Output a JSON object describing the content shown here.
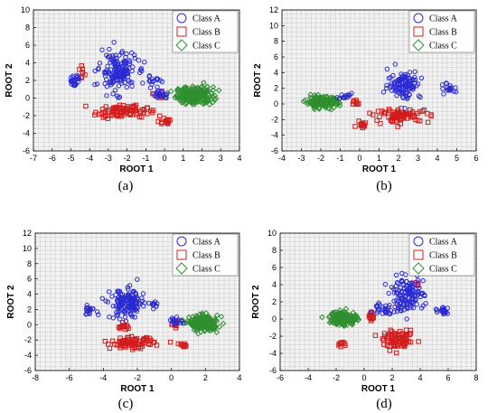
{
  "legend_entries": [
    {
      "label": "Class A",
      "color": "#2a2ad4",
      "marker": "circle"
    },
    {
      "label": "Class B",
      "color": "#d21c1c",
      "marker": "square"
    },
    {
      "label": "Class C",
      "color": "#2f8f2f",
      "marker": "diamond"
    }
  ],
  "chart_data": [
    {
      "type": "scatter",
      "caption": "(a)",
      "xlabel": "ROOT 1",
      "ylabel": "ROOT 2",
      "xlim": [
        -7,
        4
      ],
      "ylim": [
        -6,
        10
      ],
      "xticks": [
        -7,
        -6,
        -5,
        -4,
        -3,
        -2,
        -1,
        0,
        1,
        2,
        3,
        4
      ],
      "yticks": [
        -6,
        -4,
        -2,
        0,
        2,
        4,
        6,
        8,
        10
      ],
      "grid": true,
      "legend_position": "top-right",
      "series": [
        {
          "name": "Class A",
          "clusters": [
            {
              "center": [
                -2.5,
                3.0
              ],
              "spread": [
                0.7,
                1.6
              ],
              "count": 160
            },
            {
              "center": [
                -4.8,
                2.0
              ],
              "spread": [
                0.2,
                0.6
              ],
              "count": 25
            },
            {
              "center": [
                -0.5,
                2.0
              ],
              "spread": [
                0.3,
                0.4
              ],
              "count": 15
            },
            {
              "center": [
                -0.2,
                0.4
              ],
              "spread": [
                0.3,
                0.3
              ],
              "count": 20
            }
          ]
        },
        {
          "name": "Class B",
          "clusters": [
            {
              "center": [
                -2.3,
                -1.5
              ],
              "spread": [
                1.0,
                0.5
              ],
              "count": 90
            },
            {
              "center": [
                0.0,
                -2.6
              ],
              "spread": [
                0.3,
                0.3
              ],
              "count": 15
            },
            {
              "center": [
                -4.4,
                2.8
              ],
              "spread": [
                0.2,
                0.7
              ],
              "count": 8
            },
            {
              "center": [
                -0.3,
                0.3
              ],
              "spread": [
                0.2,
                0.3
              ],
              "count": 10
            }
          ]
        },
        {
          "name": "Class C",
          "clusters": [
            {
              "center": [
                1.6,
                0.3
              ],
              "spread": [
                0.7,
                0.7
              ],
              "count": 230
            }
          ]
        }
      ]
    },
    {
      "type": "scatter",
      "caption": "(b)",
      "xlabel": "ROOT 1",
      "ylabel": "ROOT 2",
      "xlim": [
        -4,
        6
      ],
      "ylim": [
        -6,
        12
      ],
      "xticks": [
        -4,
        -3,
        -2,
        -1,
        0,
        1,
        2,
        3,
        4,
        5,
        6
      ],
      "yticks": [
        -6,
        -4,
        -2,
        0,
        2,
        4,
        6,
        8,
        10,
        12
      ],
      "grid": true,
      "legend_position": "top-right",
      "series": [
        {
          "name": "Class A",
          "clusters": [
            {
              "center": [
                2.3,
                2.5
              ],
              "spread": [
                0.6,
                1.3
              ],
              "count": 110
            },
            {
              "center": [
                4.6,
                2.0
              ],
              "spread": [
                0.3,
                0.6
              ],
              "count": 20
            },
            {
              "center": [
                -0.7,
                1.0
              ],
              "spread": [
                0.3,
                0.3
              ],
              "count": 15
            }
          ]
        },
        {
          "name": "Class B",
          "clusters": [
            {
              "center": [
                2.2,
                -1.5
              ],
              "spread": [
                1.0,
                0.6
              ],
              "count": 80
            },
            {
              "center": [
                0.1,
                -2.5
              ],
              "spread": [
                0.2,
                0.3
              ],
              "count": 12
            },
            {
              "center": [
                -0.2,
                0.2
              ],
              "spread": [
                0.2,
                0.3
              ],
              "count": 8
            }
          ]
        },
        {
          "name": "Class C",
          "clusters": [
            {
              "center": [
                -1.9,
                0.2
              ],
              "spread": [
                0.6,
                0.5
              ],
              "count": 150
            }
          ]
        }
      ]
    },
    {
      "type": "scatter",
      "caption": "(c)",
      "xlabel": "ROOT 1",
      "ylabel": "ROOT 2",
      "xlim": [
        -8,
        4
      ],
      "ylim": [
        -6,
        12
      ],
      "xticks": [
        -8,
        -6,
        -4,
        -2,
        0,
        2,
        4
      ],
      "yticks": [
        -6,
        -4,
        -2,
        0,
        2,
        4,
        6,
        8,
        10,
        12
      ],
      "grid": true,
      "legend_position": "top-right",
      "series": [
        {
          "name": "Class A",
          "clusters": [
            {
              "center": [
                -2.6,
                2.7
              ],
              "spread": [
                0.7,
                1.4
              ],
              "count": 150
            },
            {
              "center": [
                -4.8,
                1.9
              ],
              "spread": [
                0.3,
                0.4
              ],
              "count": 20
            },
            {
              "center": [
                -1.0,
                2.5
              ],
              "spread": [
                0.2,
                0.3
              ],
              "count": 10
            },
            {
              "center": [
                0.3,
                0.5
              ],
              "spread": [
                0.3,
                0.3
              ],
              "count": 15
            }
          ]
        },
        {
          "name": "Class B",
          "clusters": [
            {
              "center": [
                -2.3,
                -2.4
              ],
              "spread": [
                0.9,
                0.5
              ],
              "count": 90
            },
            {
              "center": [
                0.6,
                -2.7
              ],
              "spread": [
                0.2,
                0.2
              ],
              "count": 10
            },
            {
              "center": [
                -2.8,
                -0.3
              ],
              "spread": [
                0.3,
                0.3
              ],
              "count": 15
            },
            {
              "center": [
                0.2,
                0.0
              ],
              "spread": [
                0.2,
                0.3
              ],
              "count": 10
            }
          ]
        },
        {
          "name": "Class C",
          "clusters": [
            {
              "center": [
                1.9,
                0.2
              ],
              "spread": [
                0.6,
                0.7
              ],
              "count": 200
            }
          ]
        }
      ]
    },
    {
      "type": "scatter",
      "caption": "(d)",
      "xlabel": "ROOT 1",
      "ylabel": "ROOT 2",
      "xlim": [
        -6,
        8
      ],
      "ylim": [
        -6,
        10
      ],
      "xticks": [
        -6,
        -4,
        -2,
        0,
        2,
        4,
        6,
        8
      ],
      "yticks": [
        -6,
        -4,
        -2,
        0,
        2,
        4,
        6,
        8,
        10
      ],
      "grid": true,
      "legend_position": "top-right",
      "series": [
        {
          "name": "Class A",
          "clusters": [
            {
              "center": [
                3.0,
                2.8
              ],
              "spread": [
                0.9,
                1.4
              ],
              "count": 130
            },
            {
              "center": [
                5.7,
                1.0
              ],
              "spread": [
                0.3,
                0.4
              ],
              "count": 20
            },
            {
              "center": [
                1.4,
                1.3
              ],
              "spread": [
                0.5,
                0.5
              ],
              "count": 25
            }
          ]
        },
        {
          "name": "Class B",
          "clusters": [
            {
              "center": [
                2.5,
                -2.5
              ],
              "spread": [
                0.8,
                0.7
              ],
              "count": 80
            },
            {
              "center": [
                0.5,
                0.3
              ],
              "spread": [
                0.2,
                0.5
              ],
              "count": 15
            },
            {
              "center": [
                -1.5,
                -2.9
              ],
              "spread": [
                0.3,
                0.2
              ],
              "count": 10
            },
            {
              "center": [
                3.8,
                4.0
              ],
              "spread": [
                0.2,
                0.3
              ],
              "count": 5
            }
          ]
        },
        {
          "name": "Class C",
          "clusters": [
            {
              "center": [
                -1.5,
                0.1
              ],
              "spread": [
                0.7,
                0.6
              ],
              "count": 160
            }
          ]
        }
      ]
    }
  ]
}
